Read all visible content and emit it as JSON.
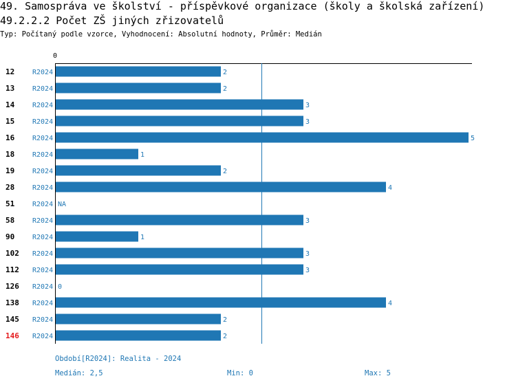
{
  "header": {
    "title": "49. Samospráva ve školství - příspěvkové organizace (školy a školská zařízení)",
    "subtitle": "49.2.2.2 Počet ZŠ jiných zřizovatelů",
    "meta": "Typ: Počítaný podle vzorce, Vyhodnocení: Absolutní hodnoty, Průměr: Medián"
  },
  "colors": {
    "bar": "#1f77b4",
    "label": "#1f77b4",
    "highlight": "#e41a1c",
    "axis": "#000000"
  },
  "chart_data": {
    "type": "bar",
    "orientation": "horizontal",
    "categories": [
      "12",
      "13",
      "14",
      "15",
      "16",
      "18",
      "19",
      "28",
      "51",
      "58",
      "90",
      "102",
      "112",
      "126",
      "138",
      "145",
      "146"
    ],
    "highlighted_category": "146",
    "series": [
      {
        "name": "R2024",
        "values": [
          2,
          2,
          3,
          3,
          5,
          1,
          2,
          4,
          null,
          3,
          1,
          3,
          3,
          0,
          4,
          2,
          2
        ],
        "value_labels": [
          "2",
          "2",
          "3",
          "3",
          "5",
          "1",
          "2",
          "4",
          "NA",
          "3",
          "1",
          "3",
          "3",
          "0",
          "4",
          "2",
          "2"
        ]
      }
    ],
    "x_axis_tick": "0",
    "xlim": [
      0,
      5
    ],
    "median": 2.5,
    "grid": false
  },
  "footer": {
    "period": "Období[R2024]: Realita - 2024",
    "median": "Medián: 2,5",
    "min": "Min: 0",
    "max": "Max: 5"
  }
}
